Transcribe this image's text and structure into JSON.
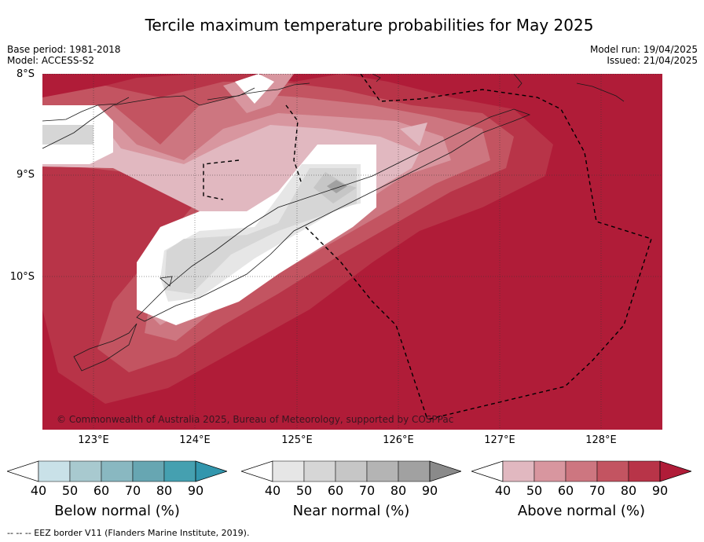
{
  "title": "Tercile maximum temperature probabilities for May 2025",
  "meta_left": [
    "Base period: 1981-2018",
    "Model: ACCESS-S2"
  ],
  "meta_right": [
    "Model run: 19/04/2025",
    "Issued: 21/04/2025"
  ],
  "lat_labels": [
    "8°S",
    "9°S",
    "10°S"
  ],
  "lon_labels": [
    "123°E",
    "124°E",
    "125°E",
    "126°E",
    "127°E",
    "128°E"
  ],
  "copyright": "© Commonwealth of Australia 2025, Bureau of Meteorology, supported by COSPPac",
  "legends": [
    {
      "title": "Below normal (%)",
      "ticks": [
        "40",
        "50",
        "60",
        "70",
        "80",
        "90"
      ],
      "colors": [
        "#ffffff",
        "#c9e1e8",
        "#a8c9cf",
        "#89b8c1",
        "#67a6b2",
        "#45a0b0",
        "#3296ad"
      ]
    },
    {
      "title": "Near normal (%)",
      "ticks": [
        "40",
        "50",
        "60",
        "70",
        "80",
        "90"
      ],
      "colors": [
        "#ffffff",
        "#e6e6e6",
        "#d6d6d6",
        "#c6c6c6",
        "#b4b4b4",
        "#a1a1a1",
        "#8a8a8a"
      ]
    },
    {
      "title": "Above normal (%)",
      "ticks": [
        "40",
        "50",
        "60",
        "70",
        "80",
        "90"
      ],
      "colors": [
        "#ffffff",
        "#e1b8c0",
        "#d8969f",
        "#cd7680",
        "#c35461",
        "#b83448",
        "#b01c38"
      ]
    }
  ],
  "footer": "--  --  -- EEZ border V11 (Flanders Marine Institute, 2019)."
}
